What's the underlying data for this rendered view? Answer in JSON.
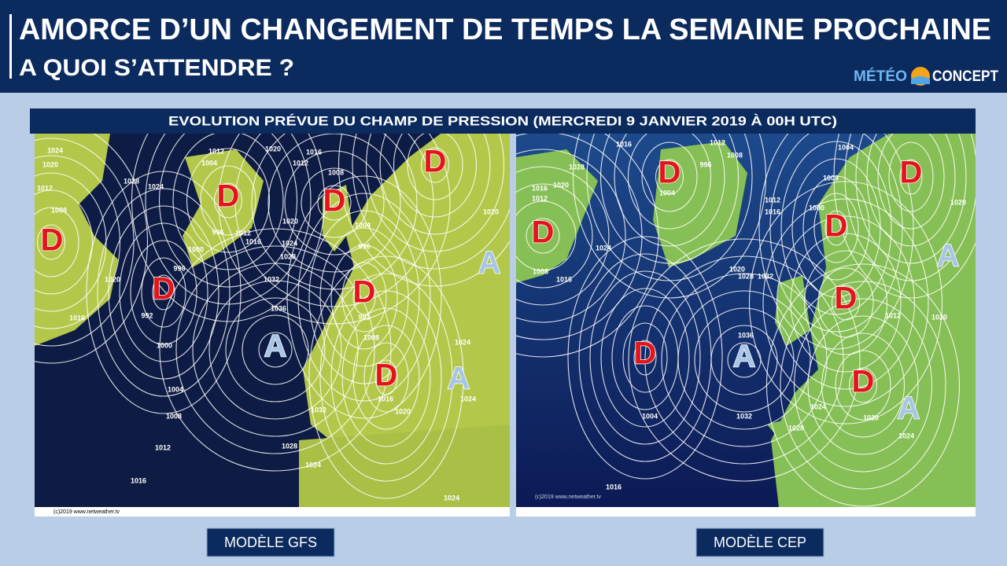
{
  "header": {
    "title_line1": "AMORCE D’UN CHANGEMENT DE TEMPS LA SEMAINE PROCHAINE",
    "title_line2": "A QUOI S’ATTENDRE ?",
    "logo_left": "MÉTÉO",
    "logo_right": "CONCEPT"
  },
  "banner": "EVOLUTION PRÉVUE DU CHAMP DE PRESSION (MERCREDI 9 JANVIER 2019 À 00H UTC)",
  "maps": [
    {
      "model": "MODÈLE GFS",
      "credit": "(c)2019  www.netweather.tv",
      "systems": [
        "D",
        "D",
        "D",
        "D",
        "D",
        "D",
        "D",
        "A",
        "A",
        "A"
      ],
      "isobar_labels": [
        "1024",
        "1020",
        "1012",
        "1008",
        "1028",
        "1024",
        "1012",
        "1004",
        "1020",
        "1016",
        "1012",
        "1008",
        "996",
        "1000",
        "1012",
        "1016",
        "1020",
        "1024",
        "1028",
        "1032",
        "1036",
        "992",
        "996",
        "1000",
        "1004",
        "1008",
        "1012",
        "1016",
        "1028",
        "1032",
        "1024",
        "1024",
        "1020",
        "1016",
        "1008",
        "992",
        "996",
        "1004",
        "1020",
        "1024",
        "1024",
        "1016",
        "1020"
      ]
    },
    {
      "model": "MODÈLE CEP",
      "credit": "(c)2019  www.netweather.tv",
      "systems": [
        "D",
        "D",
        "D",
        "D",
        "D",
        "D",
        "D",
        "A",
        "A",
        "A"
      ],
      "isobar_labels": [
        "1016",
        "1012",
        "1028",
        "1020",
        "1016",
        "1012",
        "1008",
        "1016",
        "1024",
        "1004",
        "996",
        "1008",
        "1004",
        "1008",
        "1012",
        "1016",
        "1020",
        "1028",
        "1032",
        "1036",
        "1004",
        "1032",
        "1016",
        "1020",
        "1024",
        "1028",
        "1012",
        "1020",
        "1020",
        "1000",
        "1024"
      ]
    }
  ]
}
